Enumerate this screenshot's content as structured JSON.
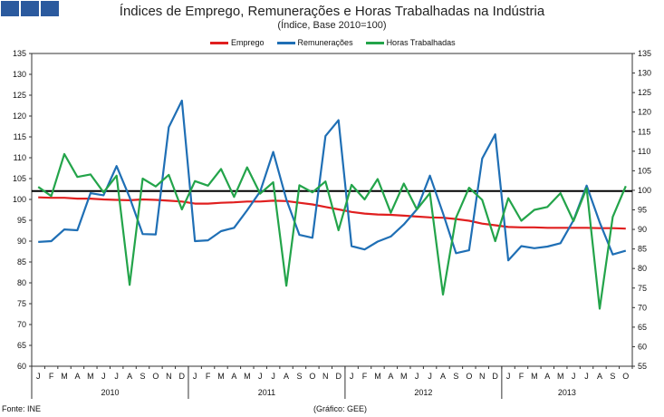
{
  "header": {
    "title": "Índices de Emprego, Remunerações e Horas Trabalhadas na Indústria",
    "subtitle": "(Índice, Base 2010=100)"
  },
  "footer": {
    "source": "Fonte: INE",
    "credit": "(Gráfico: GEE)"
  },
  "chart_data": {
    "type": "line",
    "title": "Índices de Emprego, Remunerações e Horas Trabalhadas na Indústria",
    "subtitle": "(Índice, Base 2010=100)",
    "x": [
      "J",
      "F",
      "M",
      "A",
      "M",
      "J",
      "J",
      "A",
      "S",
      "O",
      "N",
      "D",
      "J",
      "F",
      "M",
      "A",
      "M",
      "J",
      "J",
      "A",
      "S",
      "O",
      "N",
      "D",
      "J",
      "F",
      "M",
      "A",
      "M",
      "J",
      "J",
      "A",
      "S",
      "O",
      "N",
      "D",
      "J",
      "F",
      "M",
      "A",
      "M",
      "J",
      "J",
      "A",
      "S",
      "O"
    ],
    "year_groups": [
      {
        "label": "2010",
        "months": 12
      },
      {
        "label": "2011",
        "months": 12
      },
      {
        "label": "2012",
        "months": 12
      },
      {
        "label": "2013",
        "months": 10
      }
    ],
    "ylim": [
      60,
      135
    ],
    "yticks": [
      60,
      65,
      70,
      75,
      80,
      85,
      90,
      95,
      100,
      105,
      110,
      115,
      120,
      125,
      130,
      135
    ],
    "right_axis_ticks": [
      55,
      60,
      65,
      70,
      75,
      80,
      85,
      90,
      95,
      100,
      105,
      110,
      115,
      120,
      125,
      130,
      135
    ],
    "reference_line": 102,
    "grid": false,
    "legend_position": "top",
    "series": [
      {
        "name": "Emprego",
        "color": "#e01f1f",
        "values": [
          100.5,
          100.4,
          100.4,
          100.2,
          100.2,
          100.0,
          99.9,
          99.8,
          100.0,
          99.9,
          99.7,
          99.5,
          99.0,
          99.0,
          99.2,
          99.3,
          99.5,
          99.5,
          99.7,
          99.6,
          99.2,
          98.8,
          98.2,
          97.6,
          97.0,
          96.6,
          96.4,
          96.3,
          96.1,
          95.9,
          95.7,
          95.6,
          95.3,
          94.9,
          94.2,
          93.8,
          93.4,
          93.3,
          93.3,
          93.2,
          93.2,
          93.2,
          93.2,
          93.1,
          93.1,
          93.0
        ]
      },
      {
        "name": "Remunerações",
        "color": "#1f6fb5",
        "values": [
          89.8,
          90.0,
          92.8,
          92.6,
          101.5,
          101.0,
          108.0,
          100.5,
          91.7,
          91.6,
          117.3,
          123.7,
          90.0,
          90.2,
          92.4,
          93.2,
          97.4,
          101.9,
          111.4,
          100.0,
          91.5,
          90.8,
          115.2,
          119.0,
          88.8,
          88.0,
          89.9,
          91.1,
          94.0,
          97.6,
          105.7,
          96.7,
          87.1,
          87.8,
          109.8,
          115.6,
          85.4,
          88.8,
          88.3,
          88.7,
          89.5,
          95.0,
          103.3,
          94.5,
          86.8,
          87.7
        ]
      },
      {
        "name": "Horas Trabalhadas",
        "color": "#23a44a",
        "values": [
          103.0,
          100.8,
          110.9,
          105.4,
          106.0,
          101.7,
          105.7,
          79.5,
          105.0,
          103.1,
          105.9,
          97.6,
          104.4,
          103.3,
          107.3,
          100.6,
          107.7,
          101.4,
          104.1,
          79.3,
          103.4,
          101.7,
          104.3,
          92.6,
          103.5,
          100.0,
          104.9,
          96.8,
          103.8,
          97.6,
          101.5,
          77.2,
          95.6,
          102.8,
          99.9,
          90.0,
          100.3,
          94.9,
          97.5,
          98.2,
          101.5,
          94.8,
          102.7,
          73.8,
          95.8,
          103.2
        ]
      }
    ]
  }
}
